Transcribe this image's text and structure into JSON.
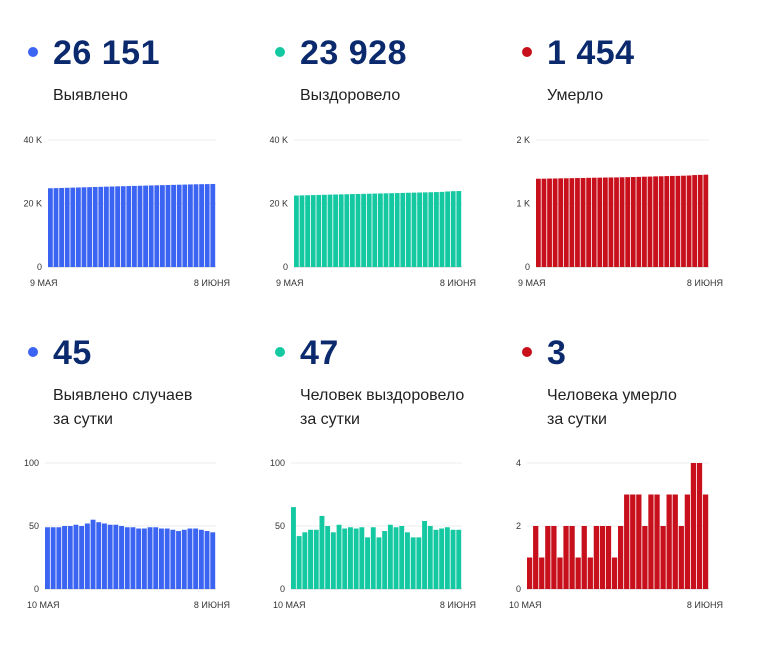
{
  "colors": {
    "blue": "#3c64f2",
    "teal": "#14c9a2",
    "red": "#c8101c",
    "number": "#0b2a6e"
  },
  "panels": [
    {
      "value": "26 151",
      "label1": "Выявлено",
      "label2": "",
      "color": "blue"
    },
    {
      "value": "23 928",
      "label1": "Выздоровело",
      "label2": "",
      "color": "teal"
    },
    {
      "value": "1 454",
      "label1": "Умерло",
      "label2": "",
      "color": "red"
    },
    {
      "value": "45",
      "label1": "Выявлено случаев",
      "label2": "за сутки",
      "color": "blue"
    },
    {
      "value": "47",
      "label1": "Человек выздоровело",
      "label2": "за сутки",
      "color": "teal"
    },
    {
      "value": "3",
      "label1": "Человека умерло",
      "label2": "за сутки",
      "color": "red"
    }
  ],
  "chart_data": [
    {
      "type": "bar",
      "color": "blue",
      "ylim": [
        0,
        40000
      ],
      "yticks": [
        {
          "v": 0,
          "label": "0"
        },
        {
          "v": 20000,
          "label": "20 K"
        },
        {
          "v": 40000,
          "label": "40 K"
        }
      ],
      "xlabels": [
        "9 МАЯ",
        "8 ИЮНЯ"
      ],
      "values": [
        24804,
        24849,
        24900,
        24950,
        25003,
        25050,
        25104,
        25150,
        25202,
        25254,
        25300,
        25353,
        25402,
        25450,
        25500,
        25548,
        25592,
        25640,
        25686,
        25733,
        25780,
        25825,
        25870,
        25916,
        25960,
        26006,
        26049,
        26084,
        26106,
        26151
      ]
    },
    {
      "type": "bar",
      "color": "teal",
      "ylim": [
        0,
        40000
      ],
      "yticks": [
        {
          "v": 0,
          "label": "0"
        },
        {
          "v": 20000,
          "label": "20 K"
        },
        {
          "v": 40000,
          "label": "40 K"
        }
      ],
      "xlabels": [
        "9 МАЯ",
        "8 ИЮНЯ"
      ],
      "values": [
        22500,
        22565,
        22606,
        22648,
        22695,
        22740,
        22798,
        22831,
        22880,
        22920,
        22965,
        23000,
        23043,
        23085,
        23125,
        23166,
        23206,
        23246,
        23287,
        23335,
        23380,
        23425,
        23465,
        23505,
        23545,
        23595,
        23665,
        23790,
        23881,
        23928
      ]
    },
    {
      "type": "bar",
      "color": "red",
      "ylim": [
        0,
        2000
      ],
      "yticks": [
        {
          "v": 0,
          "label": "0"
        },
        {
          "v": 1000,
          "label": "1 K"
        },
        {
          "v": 2000,
          "label": "2 K"
        }
      ],
      "xlabels": [
        "9 МАЯ",
        "8 ИЮНЯ"
      ],
      "values": [
        1390,
        1391,
        1393,
        1394,
        1396,
        1397,
        1399,
        1401,
        1402,
        1404,
        1406,
        1407,
        1409,
        1410,
        1411,
        1413,
        1415,
        1417,
        1419,
        1422,
        1424,
        1427,
        1429,
        1432,
        1434,
        1435,
        1438,
        1441,
        1448,
        1451,
        1454
      ]
    },
    {
      "type": "bar",
      "color": "blue",
      "ylim": [
        0,
        100
      ],
      "yticks": [
        {
          "v": 0,
          "label": "0"
        },
        {
          "v": 50,
          "label": "50"
        },
        {
          "v": 100,
          "label": "100"
        }
      ],
      "xlabels": [
        "10 МАЯ",
        "8 ИЮНЯ"
      ],
      "values": [
        49,
        49,
        49,
        50,
        50,
        51,
        50,
        52,
        55,
        53,
        52,
        51,
        51,
        50,
        49,
        49,
        48,
        48,
        49,
        49,
        48,
        48,
        47,
        46,
        47,
        48,
        48,
        47,
        46,
        45
      ]
    },
    {
      "type": "bar",
      "color": "teal",
      "ylim": [
        0,
        100
      ],
      "yticks": [
        {
          "v": 0,
          "label": "0"
        },
        {
          "v": 50,
          "label": "50"
        },
        {
          "v": 100,
          "label": "100"
        }
      ],
      "xlabels": [
        "10 МАЯ",
        "8 ИЮНЯ"
      ],
      "values": [
        65,
        42,
        45,
        47,
        47,
        58,
        50,
        45,
        51,
        48,
        49,
        48,
        49,
        41,
        49,
        41,
        46,
        51,
        49,
        50,
        45,
        41,
        41,
        54,
        50,
        47,
        48,
        49,
        47,
        47
      ]
    },
    {
      "type": "bar",
      "color": "red",
      "ylim": [
        0,
        4
      ],
      "yticks": [
        {
          "v": 0,
          "label": "0"
        },
        {
          "v": 2,
          "label": "2"
        },
        {
          "v": 4,
          "label": "4"
        }
      ],
      "xlabels": [
        "10 МАЯ",
        "8 ИЮНЯ"
      ],
      "values": [
        1,
        2,
        1,
        2,
        2,
        1,
        2,
        2,
        1,
        2,
        1,
        2,
        2,
        2,
        1,
        2,
        3,
        3,
        3,
        2,
        3,
        3,
        2,
        3,
        3,
        2,
        3,
        4,
        4,
        3
      ]
    }
  ]
}
